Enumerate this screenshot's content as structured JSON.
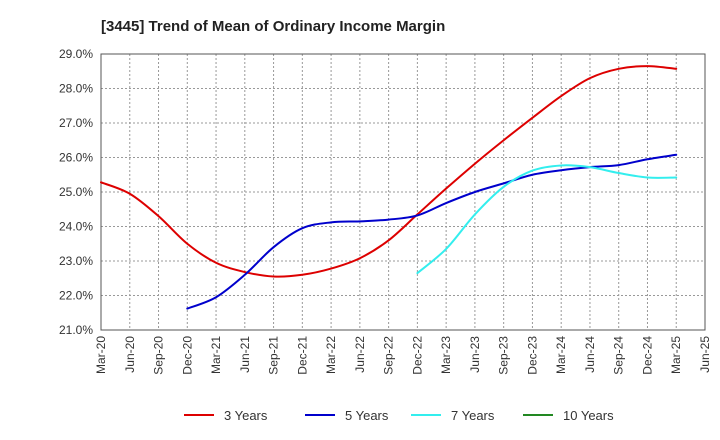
{
  "chart_data": {
    "type": "line",
    "title": "[3445]  Trend of Mean of Ordinary Income Margin",
    "xlabel": "",
    "ylabel": "",
    "y_unit": "%",
    "ylim": [
      21.0,
      29.0
    ],
    "y_ticks": [
      "21.0%",
      "22.0%",
      "23.0%",
      "24.0%",
      "25.0%",
      "26.0%",
      "27.0%",
      "28.0%",
      "29.0%"
    ],
    "x_ticks": [
      "Mar-20",
      "Jun-20",
      "Sep-20",
      "Dec-20",
      "Mar-21",
      "Jun-21",
      "Sep-21",
      "Dec-21",
      "Mar-22",
      "Jun-22",
      "Sep-22",
      "Dec-22",
      "Mar-23",
      "Jun-23",
      "Sep-23",
      "Dec-23",
      "Mar-24",
      "Jun-24",
      "Sep-24",
      "Dec-24",
      "Mar-25",
      "Jun-25"
    ],
    "grid": true,
    "legend_position": "bottom",
    "series": [
      {
        "name": "3 Years",
        "color": "#dd0000",
        "values": [
          25.28,
          24.95,
          24.3,
          23.5,
          22.95,
          22.68,
          22.55,
          22.6,
          22.78,
          23.08,
          23.6,
          24.35,
          25.1,
          25.82,
          26.5,
          27.15,
          27.78,
          28.3,
          28.57,
          28.65,
          28.57,
          null
        ]
      },
      {
        "name": "5 Years",
        "color": "#0000cc",
        "values": [
          null,
          null,
          null,
          21.62,
          21.95,
          22.6,
          23.4,
          23.95,
          24.12,
          24.15,
          24.2,
          24.32,
          24.68,
          25.0,
          25.25,
          25.5,
          25.63,
          25.72,
          25.78,
          25.95,
          26.08,
          null
        ]
      },
      {
        "name": "7 Years",
        "color": "#33eeee",
        "values": [
          null,
          null,
          null,
          null,
          null,
          null,
          null,
          null,
          null,
          null,
          null,
          22.65,
          23.35,
          24.35,
          25.15,
          25.62,
          25.77,
          25.72,
          25.55,
          25.42,
          25.42,
          null
        ]
      },
      {
        "name": "10 Years",
        "color": "#228822",
        "values": [
          null,
          null,
          null,
          null,
          null,
          null,
          null,
          null,
          null,
          null,
          null,
          null,
          null,
          null,
          null,
          null,
          null,
          null,
          null,
          null,
          null,
          null
        ]
      }
    ]
  }
}
